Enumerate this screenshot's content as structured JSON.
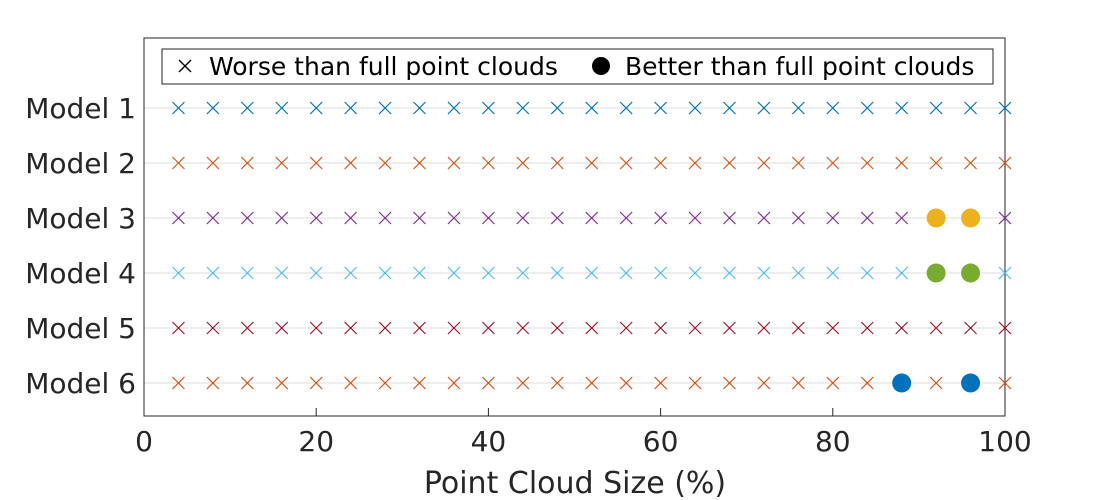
{
  "chart_data": {
    "type": "scatter",
    "xlabel": "Point Cloud Size (%)",
    "xlim": [
      0,
      100
    ],
    "xticks": [
      0,
      20,
      40,
      60,
      80,
      100
    ],
    "x": [
      4,
      8,
      12,
      16,
      20,
      24,
      28,
      32,
      36,
      40,
      44,
      48,
      52,
      56,
      60,
      64,
      68,
      72,
      76,
      80,
      84,
      88,
      92,
      96,
      100
    ],
    "categories": [
      "Model 1",
      "Model 2",
      "Model 3",
      "Model 4",
      "Model 5",
      "Model 6"
    ],
    "legend": {
      "placement": "top",
      "entries": [
        {
          "label": "Worse than full point clouds",
          "marker": "x"
        },
        {
          "label": "Better than full point clouds",
          "marker": "filled-circle"
        }
      ]
    },
    "grid": "horizontal",
    "series": [
      {
        "category": "Model 1",
        "color": "#0072BD",
        "better_x": []
      },
      {
        "category": "Model 2",
        "color": "#D95319",
        "better_x": []
      },
      {
        "category": "Model 3",
        "color": "#7E2F8E",
        "better_color": "#EDB120",
        "better_x": [
          92,
          96
        ]
      },
      {
        "category": "Model 4",
        "color": "#4DBEEE",
        "better_color": "#77AC30",
        "better_x": [
          92,
          96
        ]
      },
      {
        "category": "Model 5",
        "color": "#A2142F",
        "better_x": []
      },
      {
        "category": "Model 6",
        "color": "#D95319",
        "better_color": "#0072BD",
        "better_x": [
          88,
          96
        ]
      }
    ]
  }
}
